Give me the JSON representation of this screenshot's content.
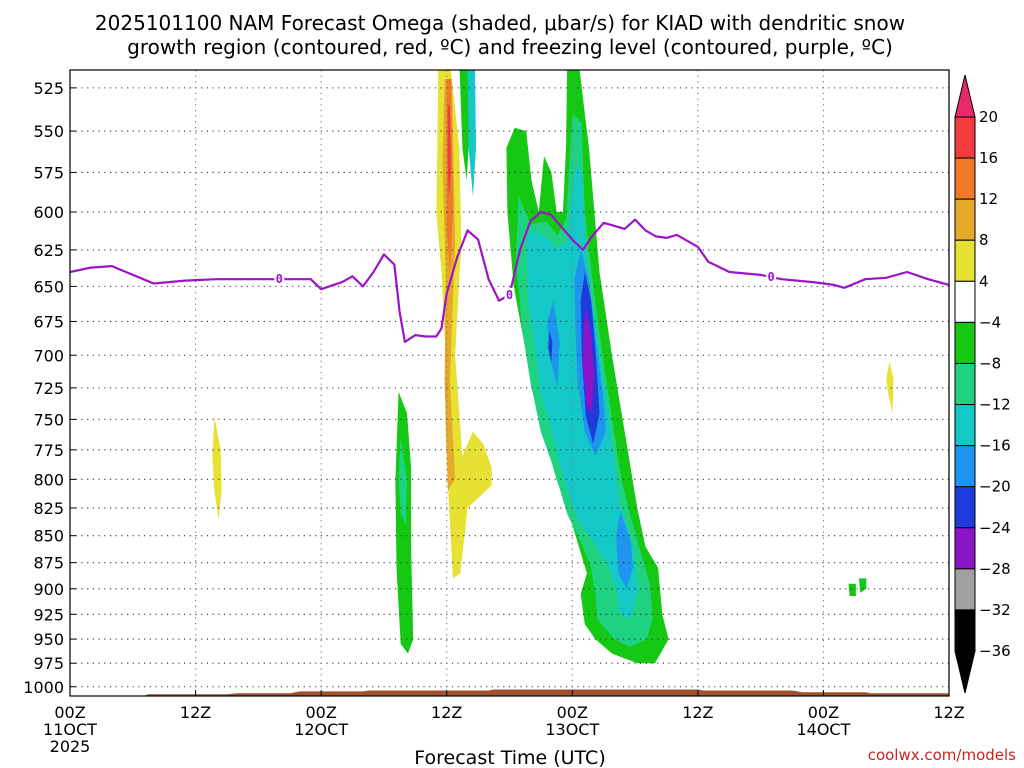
{
  "chart_data": {
    "type": "contour-cross-section",
    "title_line1": "2025101100 NAM Forecast Omega (shaded, μbar/s) for KIAD with dendritic snow",
    "title_line2": "growth region (contoured, red, ºC) and freezing level (contoured, purple, ºC)",
    "xlabel": "Forecast Time (UTC)",
    "credit": "coolwx.com/models",
    "x_range_hours": [
      0,
      84
    ],
    "y_range_mb": [
      515,
      1010
    ],
    "y_ticks": [
      "525",
      "550",
      "575",
      "600",
      "625",
      "650",
      "675",
      "700",
      "725",
      "750",
      "775",
      "800",
      "825",
      "850",
      "875",
      "900",
      "925",
      "950",
      "975",
      "1000"
    ],
    "x_ticks": [
      {
        "hour": 0,
        "l1": "00Z",
        "l2": "11OCT",
        "l3": "2025"
      },
      {
        "hour": 12,
        "l1": "12Z",
        "l2": "",
        "l3": ""
      },
      {
        "hour": 24,
        "l1": "00Z",
        "l2": "12OCT",
        "l3": ""
      },
      {
        "hour": 36,
        "l1": "12Z",
        "l2": "",
        "l3": ""
      },
      {
        "hour": 48,
        "l1": "00Z",
        "l2": "13OCT",
        "l3": ""
      },
      {
        "hour": 60,
        "l1": "12Z",
        "l2": "",
        "l3": ""
      },
      {
        "hour": 72,
        "l1": "00Z",
        "l2": "14OCT",
        "l3": ""
      },
      {
        "hour": 84,
        "l1": "12Z",
        "l2": "",
        "l3": ""
      }
    ],
    "colorbar": {
      "labels": [
        "20",
        "16",
        "12",
        "8",
        "4",
        "−4",
        "−8",
        "−12",
        "−16",
        "−20",
        "−24",
        "−28",
        "−32",
        "−36"
      ],
      "colors": [
        "#e8296c",
        "#f03c3c",
        "#f07828",
        "#e6aa28",
        "#e6e132",
        "#ffffff",
        "#14c814",
        "#1ed282",
        "#14c8c8",
        "#1e96f0",
        "#1e3cdc",
        "#8c14c8",
        "#a0a0a0",
        "#000000"
      ]
    },
    "freezing_level_label": "0",
    "freezing_level": [
      [
        0,
        640
      ],
      [
        2,
        637
      ],
      [
        4,
        636
      ],
      [
        5,
        639
      ],
      [
        8,
        648
      ],
      [
        11,
        646
      ],
      [
        14,
        645
      ],
      [
        17,
        645
      ],
      [
        20,
        645
      ],
      [
        23,
        645
      ],
      [
        24,
        652
      ],
      [
        26,
        647
      ],
      [
        27,
        643
      ],
      [
        28,
        650
      ],
      [
        29,
        640
      ],
      [
        30,
        628
      ],
      [
        31,
        635
      ],
      [
        31.5,
        668
      ],
      [
        32,
        690
      ],
      [
        33,
        685
      ],
      [
        34,
        686
      ],
      [
        35,
        686
      ],
      [
        35.5,
        680
      ],
      [
        36,
        655
      ],
      [
        37,
        630
      ],
      [
        38,
        612
      ],
      [
        39,
        618
      ],
      [
        40,
        645
      ],
      [
        41,
        660
      ],
      [
        42,
        656
      ],
      [
        43,
        625
      ],
      [
        44,
        606
      ],
      [
        45,
        600
      ],
      [
        46,
        602
      ],
      [
        47,
        610
      ],
      [
        48,
        618
      ],
      [
        49,
        625
      ],
      [
        50,
        615
      ],
      [
        51,
        607
      ],
      [
        52,
        609
      ],
      [
        53,
        611
      ],
      [
        54,
        605
      ],
      [
        55,
        612
      ],
      [
        56,
        616
      ],
      [
        57,
        617
      ],
      [
        58,
        615
      ],
      [
        60,
        623
      ],
      [
        61,
        633
      ],
      [
        63,
        640
      ],
      [
        66,
        642
      ],
      [
        68,
        645
      ],
      [
        71,
        647
      ],
      [
        73,
        649
      ],
      [
        74,
        651
      ],
      [
        76,
        645
      ],
      [
        78,
        644
      ],
      [
        80,
        640
      ],
      [
        82,
        645
      ],
      [
        84,
        649
      ]
    ],
    "freezing_label_hours": [
      20,
      42,
      67
    ],
    "omega_regions": [
      {
        "color": "#e6e132",
        "pts": [
          [
            35.2,
            515
          ],
          [
            36.4,
            515
          ],
          [
            37.2,
            560
          ],
          [
            37.4,
            620
          ],
          [
            36.8,
            700
          ],
          [
            37.5,
            780
          ],
          [
            38.5,
            760
          ],
          [
            39.5,
            770
          ],
          [
            40.3,
            790
          ],
          [
            40.3,
            805
          ],
          [
            38.0,
            825
          ],
          [
            37.3,
            885
          ],
          [
            36.6,
            890
          ],
          [
            36.2,
            820
          ],
          [
            35.9,
            760
          ],
          [
            35.9,
            700
          ],
          [
            35.5,
            640
          ],
          [
            35.0,
            600
          ],
          [
            35.1,
            560
          ]
        ]
      },
      {
        "color": "#e6e132",
        "pts": [
          [
            13.8,
            748
          ],
          [
            14.4,
            775
          ],
          [
            14.5,
            810
          ],
          [
            14.2,
            835
          ],
          [
            13.8,
            810
          ],
          [
            13.6,
            780
          ]
        ]
      },
      {
        "color": "#e6e132",
        "pts": [
          [
            78.3,
            705
          ],
          [
            78.7,
            718
          ],
          [
            78.6,
            745
          ],
          [
            78.2,
            730
          ],
          [
            78.0,
            718
          ]
        ]
      },
      {
        "color": "#e6aa28",
        "pts": [
          [
            35.8,
            520
          ],
          [
            36.5,
            520
          ],
          [
            36.8,
            620
          ],
          [
            36.3,
            720
          ],
          [
            36.8,
            800
          ],
          [
            36.1,
            810
          ],
          [
            35.8,
            720
          ],
          [
            35.9,
            640
          ],
          [
            35.6,
            570
          ]
        ]
      },
      {
        "color": "#f07828",
        "pts": [
          [
            36.0,
            520
          ],
          [
            36.4,
            520
          ],
          [
            36.6,
            600
          ],
          [
            36.3,
            640
          ],
          [
            36.0,
            610
          ]
        ]
      },
      {
        "color": "#f03c3c",
        "pts": [
          [
            36.1,
            535
          ],
          [
            36.3,
            535
          ],
          [
            36.4,
            575
          ],
          [
            36.2,
            590
          ],
          [
            36.1,
            570
          ]
        ]
      },
      {
        "color": "#14c814",
        "pts": [
          [
            31.4,
            728
          ],
          [
            32.2,
            745
          ],
          [
            32.6,
            790
          ],
          [
            32.6,
            860
          ],
          [
            32.8,
            950
          ],
          [
            32.3,
            965
          ],
          [
            31.6,
            955
          ],
          [
            31.2,
            880
          ],
          [
            31.1,
            800
          ]
        ]
      },
      {
        "color": "#1ed282",
        "pts": [
          [
            31.6,
            765
          ],
          [
            32.2,
            800
          ],
          [
            32.1,
            840
          ],
          [
            31.6,
            830
          ],
          [
            31.4,
            800
          ]
        ]
      },
      {
        "color": "#14c814",
        "pts": [
          [
            37.2,
            510
          ],
          [
            38.1,
            510
          ],
          [
            38.3,
            540
          ],
          [
            37.9,
            580
          ],
          [
            37.5,
            560
          ]
        ]
      },
      {
        "color": "#14c814",
        "pts": [
          [
            47.5,
            515
          ],
          [
            48.7,
            515
          ],
          [
            49.6,
            560
          ],
          [
            50.6,
            640
          ],
          [
            51.8,
            700
          ],
          [
            53.2,
            770
          ],
          [
            54.2,
            825
          ],
          [
            55.0,
            860
          ],
          [
            56.2,
            880
          ],
          [
            56.6,
            925
          ],
          [
            57.2,
            950
          ],
          [
            55.9,
            975
          ],
          [
            54.2,
            975
          ],
          [
            51.8,
            965
          ],
          [
            50.2,
            950
          ],
          [
            49.2,
            935
          ],
          [
            48.8,
            905
          ],
          [
            49.4,
            885
          ],
          [
            48.0,
            840
          ],
          [
            46.5,
            800
          ],
          [
            45.2,
            760
          ],
          [
            44.1,
            725
          ],
          [
            43.4,
            690
          ],
          [
            42.4,
            650
          ],
          [
            41.8,
            600
          ],
          [
            41.7,
            560
          ],
          [
            42.5,
            548
          ],
          [
            43.6,
            550
          ],
          [
            44.1,
            580
          ],
          [
            44.8,
            600
          ],
          [
            45.3,
            565
          ],
          [
            46.0,
            575
          ],
          [
            46.5,
            600
          ],
          [
            47.1,
            600
          ],
          [
            47.4,
            560
          ]
        ]
      },
      {
        "color": "#1ed282",
        "pts": [
          [
            48.0,
            540
          ],
          [
            48.9,
            545
          ],
          [
            49.2,
            600
          ],
          [
            50.0,
            650
          ],
          [
            50.9,
            700
          ],
          [
            52.0,
            760
          ],
          [
            52.7,
            800
          ],
          [
            53.5,
            830
          ],
          [
            54.4,
            860
          ],
          [
            55.4,
            895
          ],
          [
            55.7,
            930
          ],
          [
            55.1,
            950
          ],
          [
            53.5,
            958
          ],
          [
            52.0,
            950
          ],
          [
            50.4,
            930
          ],
          [
            50.2,
            905
          ],
          [
            49.8,
            880
          ],
          [
            49.0,
            860
          ],
          [
            47.5,
            830
          ],
          [
            46.2,
            790
          ],
          [
            45.0,
            760
          ],
          [
            44.0,
            720
          ],
          [
            43.2,
            680
          ],
          [
            42.6,
            630
          ],
          [
            42.9,
            590
          ],
          [
            44.0,
            608
          ],
          [
            45.5,
            606
          ],
          [
            46.6,
            615
          ],
          [
            47.4,
            605
          ]
        ]
      },
      {
        "color": "#14c8c8",
        "pts": [
          [
            48.3,
            570
          ],
          [
            48.9,
            575
          ],
          [
            49.3,
            630
          ],
          [
            50.2,
            680
          ],
          [
            51.0,
            720
          ],
          [
            51.8,
            770
          ],
          [
            52.5,
            820
          ],
          [
            53.8,
            860
          ],
          [
            54.3,
            900
          ],
          [
            53.5,
            930
          ],
          [
            52.6,
            925
          ],
          [
            52.2,
            900
          ],
          [
            51.5,
            880
          ],
          [
            50.0,
            855
          ],
          [
            48.5,
            835
          ],
          [
            47.2,
            800
          ],
          [
            46.2,
            765
          ],
          [
            45.0,
            730
          ],
          [
            44.5,
            700
          ],
          [
            43.8,
            660
          ],
          [
            43.6,
            620
          ],
          [
            44.0,
            612
          ],
          [
            45.4,
            616
          ],
          [
            46.6,
            624
          ],
          [
            47.5,
            620
          ]
        ]
      },
      {
        "color": "#1e96f0",
        "pts": [
          [
            48.8,
            625
          ],
          [
            49.6,
            645
          ],
          [
            50.3,
            690
          ],
          [
            51.0,
            735
          ],
          [
            51.2,
            760
          ],
          [
            50.2,
            780
          ],
          [
            49.2,
            760
          ],
          [
            48.5,
            720
          ],
          [
            48.3,
            680
          ],
          [
            48.2,
            645
          ]
        ]
      },
      {
        "color": "#1e96f0",
        "pts": [
          [
            46.2,
            660
          ],
          [
            46.8,
            690
          ],
          [
            46.6,
            725
          ],
          [
            45.8,
            700
          ],
          [
            45.6,
            675
          ]
        ]
      },
      {
        "color": "#1e96f0",
        "pts": [
          [
            52.6,
            828
          ],
          [
            53.6,
            855
          ],
          [
            53.8,
            880
          ],
          [
            53.2,
            900
          ],
          [
            52.4,
            885
          ],
          [
            52.2,
            850
          ]
        ]
      },
      {
        "color": "#1e3cdc",
        "pts": [
          [
            49.2,
            640
          ],
          [
            49.8,
            660
          ],
          [
            50.3,
            705
          ],
          [
            50.6,
            745
          ],
          [
            50.0,
            770
          ],
          [
            49.3,
            748
          ],
          [
            48.9,
            700
          ],
          [
            48.8,
            660
          ]
        ]
      },
      {
        "color": "#1e3cdc",
        "pts": [
          [
            45.8,
            682
          ],
          [
            46.1,
            690
          ],
          [
            46.0,
            705
          ],
          [
            45.7,
            695
          ]
        ]
      },
      {
        "color": "#8c14c8",
        "pts": [
          [
            49.3,
            665
          ],
          [
            49.8,
            685
          ],
          [
            50.1,
            715
          ],
          [
            49.9,
            745
          ],
          [
            49.4,
            740
          ],
          [
            49.0,
            705
          ],
          [
            49.1,
            680
          ]
        ]
      },
      {
        "color": "#14c814",
        "pts": [
          [
            75.4,
            890
          ],
          [
            76.1,
            890
          ],
          [
            76.1,
            900
          ],
          [
            75.5,
            904
          ]
        ]
      },
      {
        "color": "#14c814",
        "pts": [
          [
            74.4,
            895
          ],
          [
            75.1,
            895
          ],
          [
            75.1,
            907
          ],
          [
            74.5,
            907
          ]
        ]
      },
      {
        "color": "#14c8c8",
        "pts": [
          [
            38.0,
            515
          ],
          [
            38.7,
            515
          ],
          [
            38.8,
            560
          ],
          [
            38.5,
            590
          ],
          [
            38.1,
            560
          ]
        ]
      }
    ],
    "terrain_top_mb": [
      [
        0,
        1010
      ],
      [
        7,
        1010
      ],
      [
        7.5,
        1008
      ],
      [
        15,
        1008
      ],
      [
        16,
        1007
      ],
      [
        21,
        1007
      ],
      [
        22,
        1005
      ],
      [
        28,
        1005
      ],
      [
        28.5,
        1004
      ],
      [
        40,
        1004
      ],
      [
        40.5,
        1003
      ],
      [
        60,
        1003
      ],
      [
        60.5,
        1004
      ],
      [
        64,
        1004
      ],
      [
        65,
        1004
      ],
      [
        69,
        1004
      ],
      [
        70,
        1006
      ],
      [
        76,
        1006
      ],
      [
        76.5,
        1007
      ],
      [
        84,
        1007
      ]
    ]
  }
}
